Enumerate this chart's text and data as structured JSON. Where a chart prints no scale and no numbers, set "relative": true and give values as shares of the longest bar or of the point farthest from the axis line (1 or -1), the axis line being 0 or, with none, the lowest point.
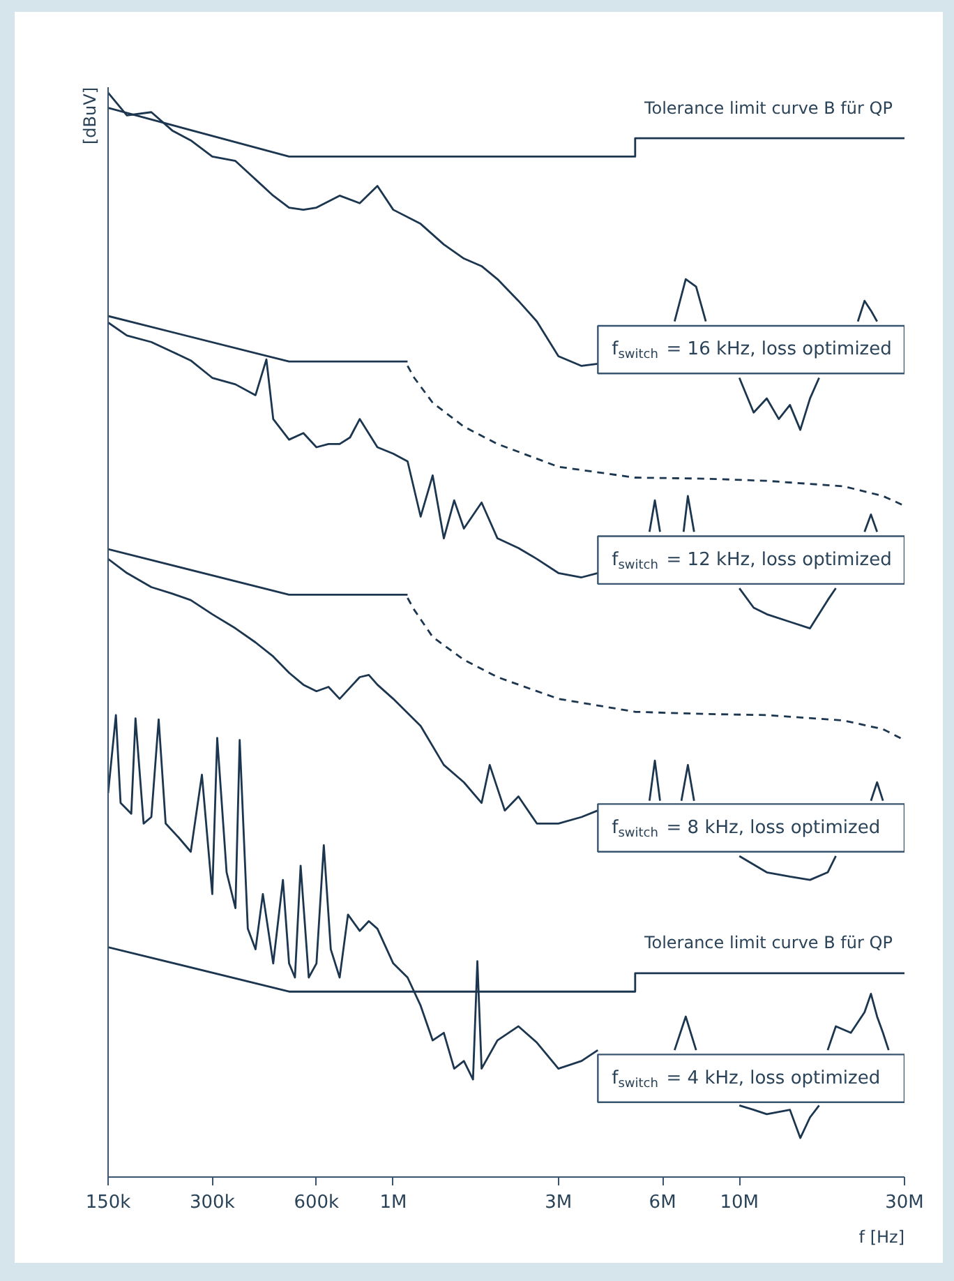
{
  "chart_data": {
    "type": "line",
    "relative": true,
    "log": "x",
    "grid": false,
    "xlabel": "f [Hz]",
    "ylabel": "[dBuV]",
    "xlim": [
      150000,
      30000000
    ],
    "xticks": [
      {
        "value": 150000,
        "label": "150k"
      },
      {
        "value": 300000,
        "label": "300k"
      },
      {
        "value": 600000,
        "label": "600k"
      },
      {
        "value": 1000000,
        "label": "1M"
      },
      {
        "value": 3000000,
        "label": "3M"
      },
      {
        "value": 6000000,
        "label": "6M"
      },
      {
        "value": 10000000,
        "label": "10M"
      },
      {
        "value": 30000000,
        "label": "30M"
      }
    ],
    "series": [
      {
        "name": "Tolerance limit curve B für QP",
        "color": "#1c3650",
        "line_style": "solid",
        "x": [
          150000,
          500000,
          5000000,
          5000000,
          30000000
        ],
        "values": [
          0.986,
          0.941,
          0.941,
          0.958,
          0.958
        ]
      },
      {
        "name": "f$_{switch}$ = 16 kHz, loss optimized",
        "color": "#1c3650",
        "line_style": "solid",
        "x": [
          150000,
          170000,
          200000,
          230000,
          260000,
          300000,
          350000,
          400000,
          450000,
          500000,
          550000,
          600000,
          700000,
          800000,
          900000,
          1000000,
          1200000,
          1400000,
          1600000,
          1800000,
          2000000,
          2300000,
          2600000,
          3000000,
          3500000,
          3900000,
          null,
          6500000,
          7000000,
          7500000,
          8000000,
          null,
          10000000,
          11000000,
          12000000,
          13000000,
          14000000,
          15000000,
          16000000,
          17000000,
          null,
          22000000,
          23000000,
          24000000,
          25000000
        ],
        "values": [
          1.0,
          0.979,
          0.982,
          0.965,
          0.956,
          0.941,
          0.937,
          0.92,
          0.905,
          0.894,
          0.892,
          0.894,
          0.905,
          0.898,
          0.914,
          0.892,
          0.879,
          0.86,
          0.847,
          0.84,
          0.828,
          0.808,
          0.789,
          0.757,
          0.748,
          0.75,
          null,
          0.789,
          0.828,
          0.821,
          0.789,
          null,
          0.737,
          0.705,
          0.718,
          0.699,
          0.712,
          0.689,
          0.718,
          0.737,
          null,
          0.789,
          0.808,
          0.799,
          0.789
        ]
      },
      {
        "color": "#1c3650",
        "line_style": "solid",
        "x": [
          150000,
          500000,
          1100000
        ],
        "values": [
          0.794,
          0.752,
          0.752
        ]
      },
      {
        "color": "#1c3650",
        "line_style": "dashed",
        "x": [
          1100000,
          1150000,
          1300000,
          1600000,
          2000000,
          3000000,
          5000000,
          8000000,
          12000000,
          20000000,
          26000000,
          30000000
        ],
        "values": [
          0.748,
          0.737,
          0.714,
          0.692,
          0.676,
          0.655,
          0.645,
          0.644,
          0.642,
          0.637,
          0.628,
          0.619
        ]
      },
      {
        "name": "f$_{switch}$ = 12 kHz, loss optimized",
        "color": "#1c3650",
        "line_style": "solid",
        "x": [
          150000,
          170000,
          200000,
          230000,
          260000,
          300000,
          350000,
          400000,
          430000,
          450000,
          500000,
          550000,
          600000,
          650000,
          700000,
          750000,
          800000,
          900000,
          1000000,
          1100000,
          1200000,
          1300000,
          1400000,
          1500000,
          1600000,
          1800000,
          2000000,
          2300000,
          2600000,
          3000000,
          3500000,
          3900000,
          null,
          5500000,
          5700000,
          5900000,
          null,
          6900000,
          7100000,
          7400000,
          null,
          10000000,
          11000000,
          12000000,
          14000000,
          16000000,
          18000000,
          19000000,
          null,
          23000000,
          24000000,
          25000000
        ],
        "values": [
          0.788,
          0.776,
          0.77,
          0.761,
          0.753,
          0.737,
          0.731,
          0.721,
          0.754,
          0.699,
          0.68,
          0.686,
          0.673,
          0.676,
          0.676,
          0.682,
          0.699,
          0.673,
          0.667,
          0.66,
          0.609,
          0.647,
          0.589,
          0.624,
          0.598,
          0.622,
          0.589,
          0.58,
          0.57,
          0.557,
          0.553,
          0.557,
          null,
          0.595,
          0.624,
          0.595,
          null,
          0.595,
          0.628,
          0.595,
          null,
          0.543,
          0.525,
          0.519,
          0.512,
          0.506,
          0.532,
          0.543,
          null,
          0.595,
          0.611,
          0.595
        ]
      },
      {
        "color": "#1c3650",
        "line_style": "solid",
        "x": [
          150000,
          500000,
          1100000
        ],
        "values": [
          0.579,
          0.537,
          0.537
        ]
      },
      {
        "color": "#1c3650",
        "line_style": "dashed",
        "x": [
          1100000,
          1150000,
          1300000,
          1600000,
          2000000,
          3000000,
          5000000,
          8000000,
          12000000,
          20000000,
          26000000,
          30000000
        ],
        "values": [
          0.534,
          0.523,
          0.498,
          0.477,
          0.461,
          0.441,
          0.429,
          0.427,
          0.426,
          0.421,
          0.413,
          0.403
        ]
      },
      {
        "name": "f$_{switch}$ = 8 kHz, loss optimized",
        "color": "#1c3650",
        "line_style": "solid",
        "x": [
          150000,
          170000,
          200000,
          230000,
          260000,
          300000,
          350000,
          400000,
          450000,
          500000,
          550000,
          600000,
          650000,
          700000,
          800000,
          850000,
          900000,
          1000000,
          1200000,
          1400000,
          1600000,
          1800000,
          1900000,
          2100000,
          2300000,
          2600000,
          3000000,
          3500000,
          3900000,
          null,
          5500000,
          5700000,
          5900000,
          null,
          6800000,
          7100000,
          7400000,
          null,
          10000000,
          12000000,
          14000000,
          16000000,
          18000000,
          19000000,
          null,
          24000000,
          25000000,
          26000000
        ],
        "values": [
          0.57,
          0.557,
          0.544,
          0.538,
          0.532,
          0.519,
          0.506,
          0.493,
          0.48,
          0.465,
          0.454,
          0.448,
          0.452,
          0.441,
          0.461,
          0.463,
          0.454,
          0.441,
          0.416,
          0.38,
          0.364,
          0.345,
          0.38,
          0.338,
          0.351,
          0.326,
          0.326,
          0.332,
          0.338,
          null,
          0.347,
          0.384,
          0.347,
          null,
          0.347,
          0.38,
          0.347,
          null,
          0.296,
          0.281,
          0.277,
          0.274,
          0.281,
          0.296,
          null,
          0.347,
          0.364,
          0.347
        ]
      },
      {
        "name": "Tolerance limit curve B für QP",
        "color": "#1c3650",
        "line_style": "solid",
        "x": [
          150000,
          500000,
          5000000,
          5000000,
          30000000
        ],
        "values": [
          0.212,
          0.171,
          0.171,
          0.188,
          0.188
        ]
      },
      {
        "name": "f$_{switch}$ = 4 kHz, loss optimized",
        "color": "#1c3650",
        "line_style": "solid",
        "x": [
          150000,
          158000,
          163000,
          175000,
          180000,
          190000,
          200000,
          210000,
          220000,
          240000,
          260000,
          280000,
          300000,
          310000,
          330000,
          350000,
          360000,
          380000,
          400000,
          420000,
          450000,
          480000,
          500000,
          520000,
          540000,
          570000,
          600000,
          630000,
          660000,
          700000,
          740000,
          800000,
          850000,
          900000,
          1000000,
          1100000,
          1200000,
          1300000,
          1400000,
          1500000,
          1600000,
          1700000,
          1750000,
          1800000,
          2000000,
          2300000,
          2600000,
          3000000,
          3500000,
          3900000,
          null,
          6500000,
          7000000,
          7500000,
          null,
          10000000,
          11000000,
          12000000,
          14000000,
          15000000,
          16000000,
          17000000,
          null,
          18000000,
          19000000,
          21000000,
          23000000,
          24000000,
          25000000,
          26000000,
          27000000
        ],
        "values": [
          0.354,
          0.426,
          0.345,
          0.335,
          0.423,
          0.326,
          0.332,
          0.422,
          0.326,
          0.313,
          0.3,
          0.371,
          0.261,
          0.405,
          0.281,
          0.248,
          0.403,
          0.229,
          0.21,
          0.261,
          0.197,
          0.274,
          0.197,
          0.184,
          0.287,
          0.184,
          0.197,
          0.306,
          0.21,
          0.184,
          0.242,
          0.227,
          0.236,
          0.229,
          0.197,
          0.184,
          0.158,
          0.126,
          0.133,
          0.1,
          0.107,
          0.09,
          0.199,
          0.1,
          0.126,
          0.139,
          0.124,
          0.1,
          0.107,
          0.117,
          null,
          0.117,
          0.148,
          0.117,
          null,
          0.066,
          0.062,
          0.058,
          0.062,
          0.036,
          0.055,
          0.066,
          null,
          0.117,
          0.139,
          0.133,
          0.152,
          0.169,
          0.148,
          0.133,
          0.117
        ]
      }
    ]
  }
}
